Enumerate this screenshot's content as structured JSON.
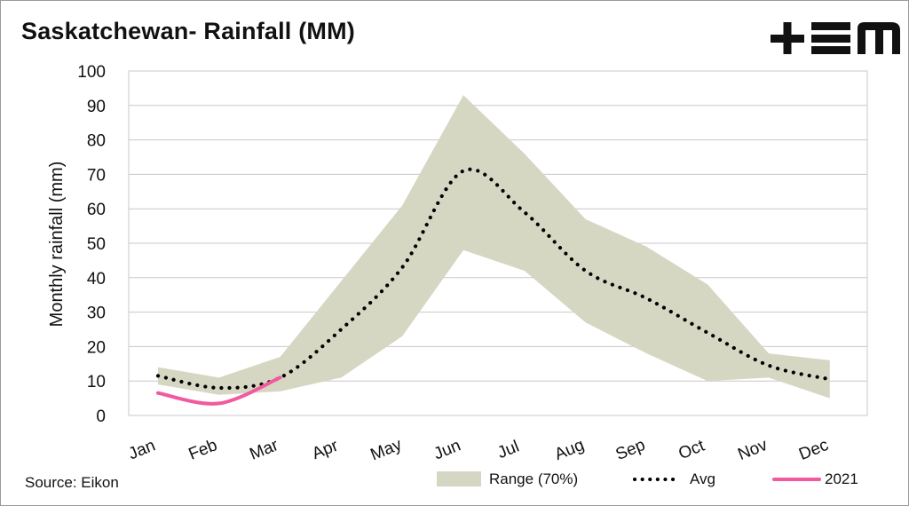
{
  "header": {
    "title": "Saskatchewan- Rainfall (MM)",
    "logo_text": "+EM"
  },
  "footer": {
    "source": "Source: Eikon"
  },
  "colors": {
    "range_fill": "#d6d7c3",
    "avg_line": "#000000",
    "line_2021": "#f15a9f",
    "grid": "#c8c8c8"
  },
  "chart_data": {
    "type": "area",
    "title": "Saskatchewan- Rainfall (MM)",
    "xlabel": "",
    "ylabel": "Monthly rainfall (mm)",
    "ylim": [
      0,
      100
    ],
    "yticks": [
      0,
      10,
      20,
      30,
      40,
      50,
      60,
      70,
      80,
      90,
      100
    ],
    "categories": [
      "Jan",
      "Feb",
      "Mar",
      "Apr",
      "May",
      "Jun",
      "Jul",
      "Aug",
      "Sep",
      "Oct",
      "Nov",
      "Dec"
    ],
    "grid": true,
    "legend_position": "bottom",
    "series": [
      {
        "name": "Range (70%)",
        "kind": "band",
        "low": [
          9,
          6,
          7,
          11,
          23,
          48,
          42,
          27,
          18,
          10,
          11,
          5
        ],
        "high": [
          14,
          11,
          17,
          39,
          61,
          93,
          76,
          57,
          49,
          38,
          18,
          16
        ]
      },
      {
        "name": "Avg",
        "kind": "dotted-line",
        "values": [
          11.5,
          8,
          11,
          25,
          43,
          71,
          59,
          42,
          34,
          24,
          14.5,
          10.5
        ]
      },
      {
        "name": "2021",
        "kind": "line",
        "values": [
          6.5,
          3.5,
          11,
          null,
          null,
          null,
          null,
          null,
          null,
          null,
          null,
          null
        ]
      }
    ]
  }
}
